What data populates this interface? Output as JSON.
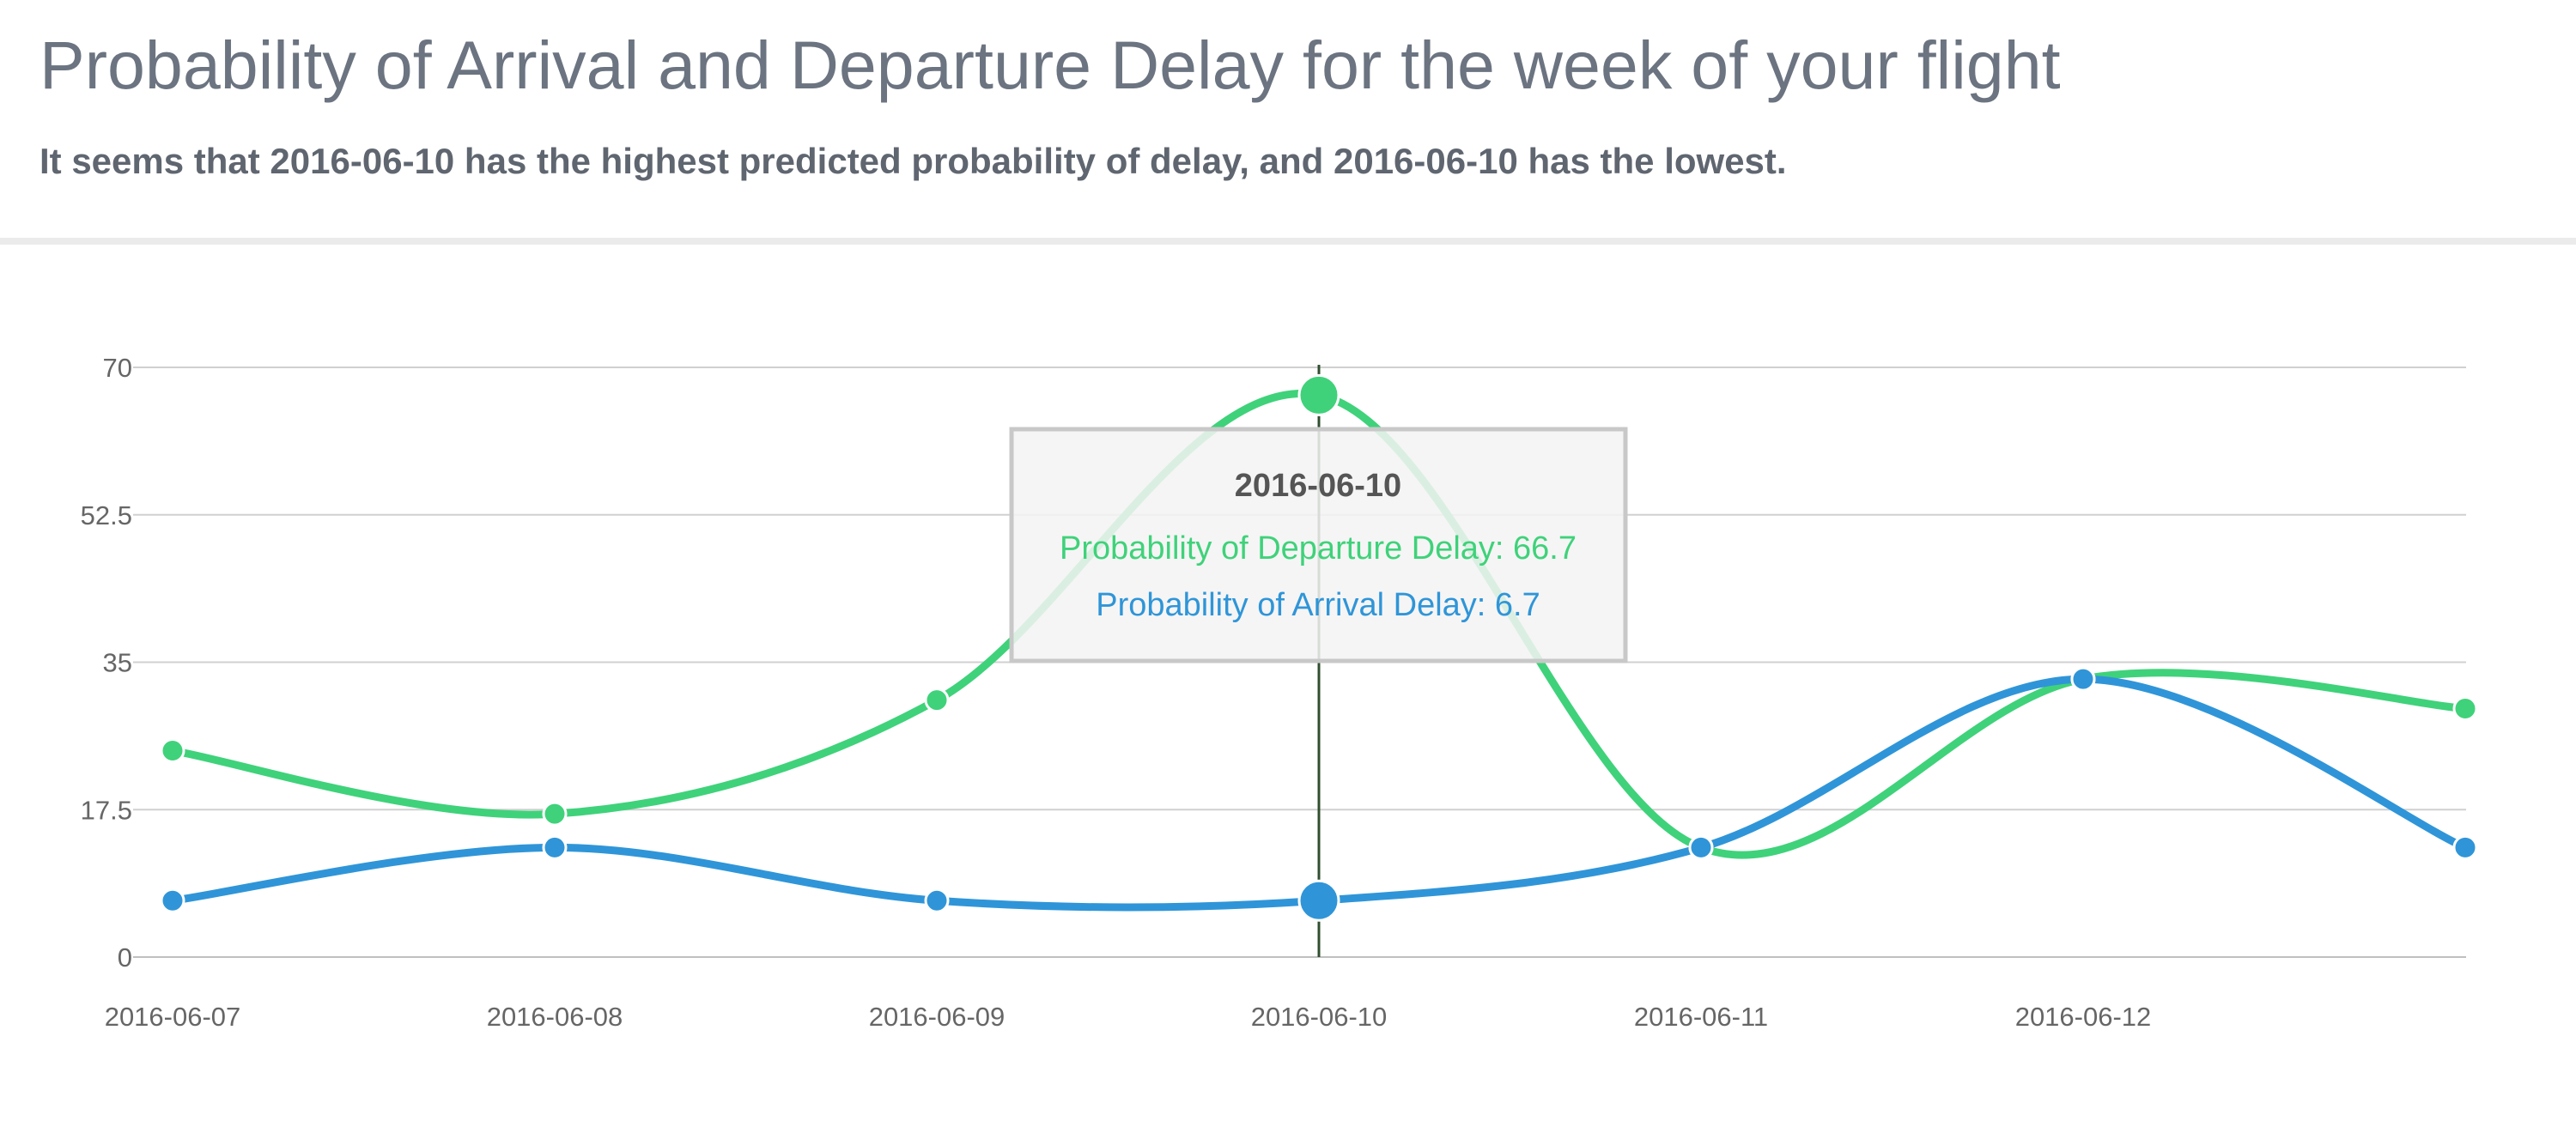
{
  "header": {
    "title": "Probability of Arrival and Departure Delay for the week of your flight",
    "subtitle": "It seems that 2016-06-10 has the highest predicted probability of delay, and 2016-06-10 has the lowest."
  },
  "chart_data": {
    "type": "line",
    "categories": [
      "2016-06-07",
      "2016-06-08",
      "2016-06-09",
      "2016-06-10",
      "2016-06-11",
      "2016-06-12",
      ""
    ],
    "series": [
      {
        "name": "Probability of Departure Delay",
        "color": "#3fd27a",
        "values": [
          24.5,
          17,
          30.5,
          66.7,
          13,
          33,
          29.5
        ]
      },
      {
        "name": "Probability of Arrival Delay",
        "color": "#2f95d8",
        "values": [
          6.7,
          13,
          6.7,
          6.7,
          13,
          33,
          13
        ]
      }
    ],
    "yticks": [
      "0",
      "17.5",
      "35",
      "52.5",
      "70"
    ],
    "ylim": [
      0,
      70
    ],
    "grid": true,
    "tooltip": {
      "title": "2016-06-10",
      "lines": [
        {
          "label": "Probability of Departure Delay: 66.7",
          "color": "#3fd27a"
        },
        {
          "label": "Probability of Arrival Delay: 6.7",
          "color": "#2f95d8"
        }
      ]
    }
  }
}
